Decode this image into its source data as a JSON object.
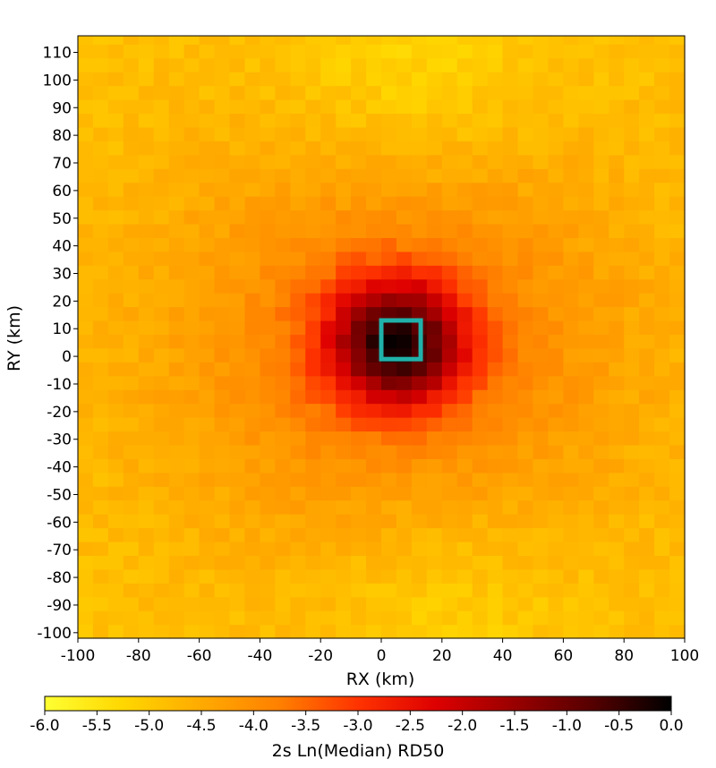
{
  "chart_data": {
    "type": "heatmap",
    "xlabel": "RX (km)",
    "ylabel": "RY (km)",
    "xlim": [
      -100,
      100
    ],
    "ylim": [
      -102,
      116
    ],
    "x_ticks": [
      -100,
      -80,
      -60,
      -40,
      -20,
      0,
      20,
      40,
      60,
      80,
      100
    ],
    "y_ticks": [
      -100,
      -90,
      -80,
      -70,
      -60,
      -50,
      -40,
      -30,
      -20,
      -10,
      0,
      10,
      20,
      30,
      40,
      50,
      60,
      70,
      80,
      90,
      100,
      110
    ],
    "cell_size_km": 5,
    "colorbar": {
      "label": "2s Ln(Median) RD50",
      "range": [
        -6.0,
        0.0
      ],
      "ticks": [
        "-6.0",
        "-5.5",
        "-5.0",
        "-4.5",
        "-4.0",
        "-3.5",
        "-3.0",
        "-2.5",
        "-2.0",
        "-1.5",
        "-1.0",
        "-0.5",
        "0.0"
      ],
      "colors": [
        "#ffff33",
        "#ffd700",
        "#ffaa00",
        "#ff8000",
        "#ff3300",
        "#dd0000",
        "#990000",
        "#550000",
        "#000000"
      ]
    },
    "field_model": {
      "description_type": "radial",
      "background_value": -4.9,
      "peak_value": -0.3,
      "peak_center_km": [
        5,
        5
      ],
      "core_radius_km": 16,
      "halo_radius_km": 55,
      "halo_value": -3.9,
      "low_regions": [
        {
          "center_km": [
            10,
            100
          ],
          "radius_km": 30,
          "value": -5.4
        },
        {
          "center_km": [
            20,
            -85
          ],
          "radius_km": 30,
          "value": -5.3
        }
      ]
    },
    "annotation": {
      "type": "rectangle",
      "color": "#20b2aa",
      "x_range_km": [
        0,
        13
      ],
      "y_range_km": [
        -1,
        13
      ]
    }
  }
}
